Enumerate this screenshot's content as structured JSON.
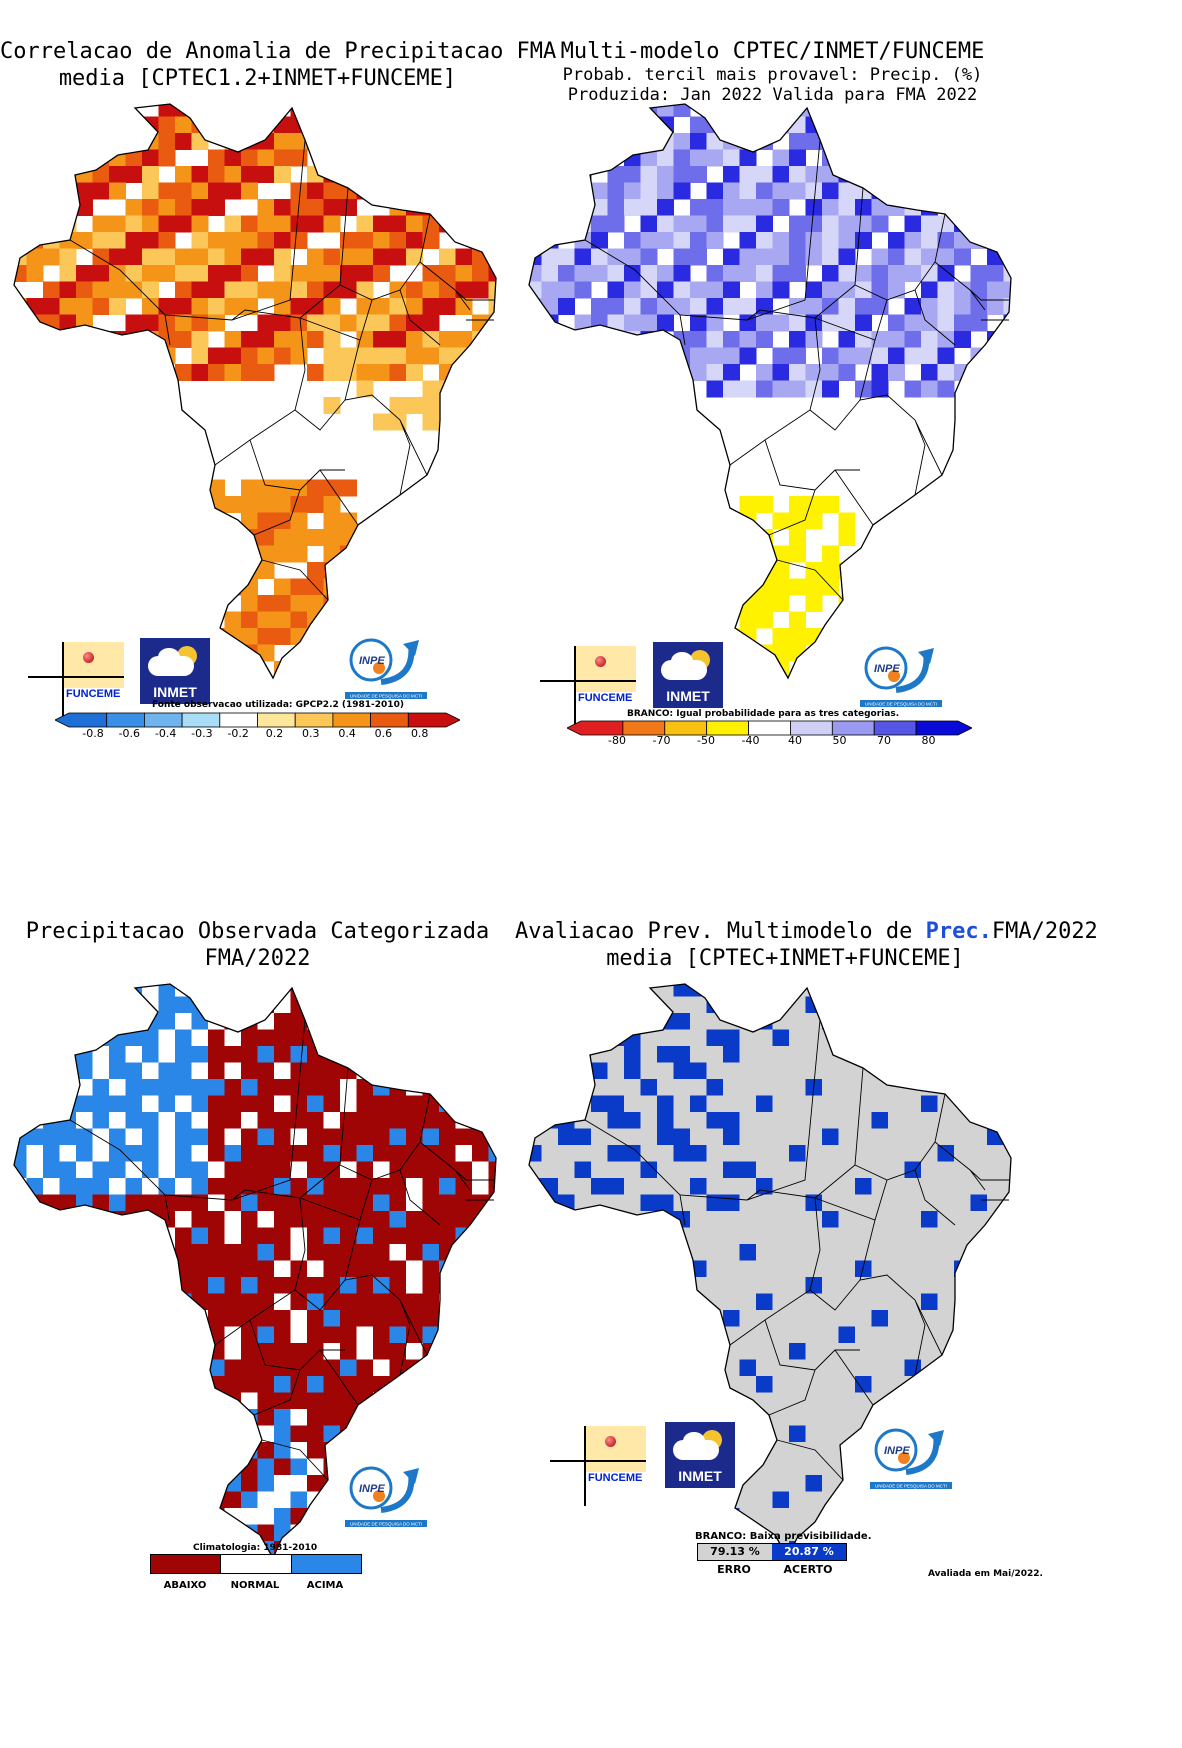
{
  "panels": {
    "corr": {
      "title1": "Correlacao de Anomalia de Precipitacao FMA",
      "title2": "media [CPTEC1.2+INMET+FUNCEME]",
      "note": "Fonte observacao utilizada: GPCP2.2 (1981-2010)",
      "labels": [
        "-0.8",
        "-0.6",
        "-0.4",
        "-0.3",
        "-0.2",
        "0.2",
        "0.3",
        "0.4",
        "0.6",
        "0.8"
      ],
      "colors": [
        "#1e6fd6",
        "#3b8fe6",
        "#6fb4ee",
        "#a8dcf7",
        "#ffffff",
        "#fde79a",
        "#fbc758",
        "#f49419",
        "#e85b10",
        "#c80f0f"
      ],
      "map_legend": [
        "#fde79a",
        "#fbc758",
        "#f49419",
        "#e85b10",
        "#c80f0f",
        "#a8dcf7"
      ]
    },
    "forecast": {
      "title1": "Multi-modelo CPTEC/INMET/FUNCEME",
      "title2": "Probab. tercil mais provavel: Precip. (%)",
      "title3": "Produzida: Jan 2022   Valida para FMA 2022",
      "note": "BRANCO: Igual probabilidade para as tres categorias.",
      "labels": [
        "-80",
        "-70",
        "-50",
        "-40",
        "40",
        "50",
        "70",
        "80"
      ],
      "colors": [
        "#e02020",
        "#f07818",
        "#f8c010",
        "#fff000",
        "#ffffff",
        "#d0d0f6",
        "#9a9af0",
        "#5656e6",
        "#0a0ad8"
      ],
      "map_legend": [
        "#d6d6f8",
        "#a8a8f2",
        "#6e6eea",
        "#2a2ae0",
        "#fff200",
        "#f6e100"
      ]
    },
    "observed": {
      "title1": "Precipitacao Observada Categorizada",
      "title2": "FMA/2022",
      "note": "Climatologia: 1981-2010",
      "categories": [
        "ABAIXO",
        "NORMAL",
        "ACIMA"
      ],
      "colors": [
        "#a00505",
        "#ffffff",
        "#2a87e8"
      ]
    },
    "evaluation": {
      "title1": "Avaliacao Prev. Multimodelo de",
      "title_highlight": "Prec.",
      "title1_end": "FMA/2022",
      "title2": "media [CPTEC+INMET+FUNCEME]",
      "note": "BRANCO: Baixa previsibilidade.",
      "erro_value": "79.13 %",
      "acerto_value": "20.87 %",
      "erro_label": "ERRO",
      "acerto_label": "ACERTO",
      "footer": "Avaliada em Mai/2022.",
      "colors": [
        "#d3d3d3",
        "#0a3ac8"
      ]
    }
  },
  "logos": {
    "funceme": "FUNCEME",
    "inmet": "INMET",
    "inpe": "INPE",
    "inpe_sub": "UNIDADE DE PESQUISA DO MCTI"
  }
}
